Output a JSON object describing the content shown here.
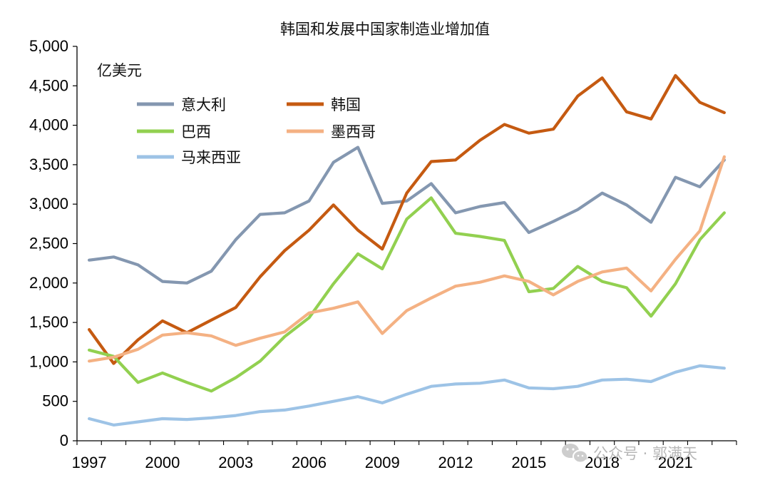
{
  "chart_data": {
    "type": "line",
    "title": "韩国和发展中国家制造业增加值",
    "unit_label": "亿美元",
    "x": [
      1997,
      1998,
      1999,
      2000,
      2001,
      2002,
      2003,
      2004,
      2005,
      2006,
      2007,
      2008,
      2009,
      2010,
      2011,
      2012,
      2013,
      2014,
      2015,
      2016,
      2017,
      2018,
      2019,
      2020,
      2021,
      2022,
      2023
    ],
    "x_tick_labels": [
      "1997",
      "2000",
      "2003",
      "2006",
      "2009",
      "2012",
      "2015",
      "2018",
      "2021"
    ],
    "y_tick_labels": [
      "0",
      "500",
      "1,000",
      "1,500",
      "2,000",
      "2,500",
      "3,000",
      "3,500",
      "4,000",
      "4,500",
      "5,000"
    ],
    "ylim": [
      0,
      5000
    ],
    "grid": false,
    "legend_position": "top-left",
    "series": [
      {
        "name": "意大利",
        "color": "#8497b0",
        "values": [
          2290,
          2330,
          2230,
          2020,
          2000,
          2150,
          2550,
          2870,
          2890,
          3040,
          3530,
          3720,
          3010,
          3040,
          3260,
          2890,
          2970,
          3020,
          2640,
          2780,
          2930,
          3140,
          2990,
          2770,
          3340,
          3220,
          3560
        ]
      },
      {
        "name": "韩国",
        "color": "#c55a11",
        "values": [
          1410,
          980,
          1280,
          1520,
          1370,
          1530,
          1690,
          2080,
          2410,
          2670,
          2990,
          2670,
          2430,
          3140,
          3540,
          3560,
          3810,
          4010,
          3900,
          3950,
          4370,
          4600,
          4170,
          4080,
          4630,
          4290,
          4160
        ]
      },
      {
        "name": "巴西",
        "color": "#92d050",
        "values": [
          1150,
          1070,
          740,
          860,
          740,
          630,
          800,
          1010,
          1320,
          1560,
          1990,
          2370,
          2180,
          2810,
          3080,
          2630,
          2590,
          2540,
          1890,
          1930,
          2210,
          2020,
          1940,
          1580,
          1990,
          2550,
          2890
        ]
      },
      {
        "name": "墨西哥",
        "color": "#f4b183",
        "values": [
          1010,
          1060,
          1160,
          1340,
          1370,
          1330,
          1210,
          1300,
          1380,
          1620,
          1680,
          1760,
          1360,
          1650,
          1810,
          1960,
          2010,
          2090,
          2020,
          1850,
          2020,
          2140,
          2190,
          1900,
          2300,
          2660,
          3600
        ]
      },
      {
        "name": "马来西亚",
        "color": "#9dc3e6",
        "values": [
          280,
          200,
          240,
          280,
          270,
          290,
          320,
          370,
          390,
          440,
          500,
          560,
          480,
          590,
          690,
          720,
          730,
          770,
          670,
          660,
          690,
          770,
          780,
          750,
          870,
          950,
          920
        ]
      }
    ]
  },
  "watermark": {
    "text": "公众号 · 郭满天",
    "icon": "wechat-icon",
    "color": "#b0b0b0"
  }
}
